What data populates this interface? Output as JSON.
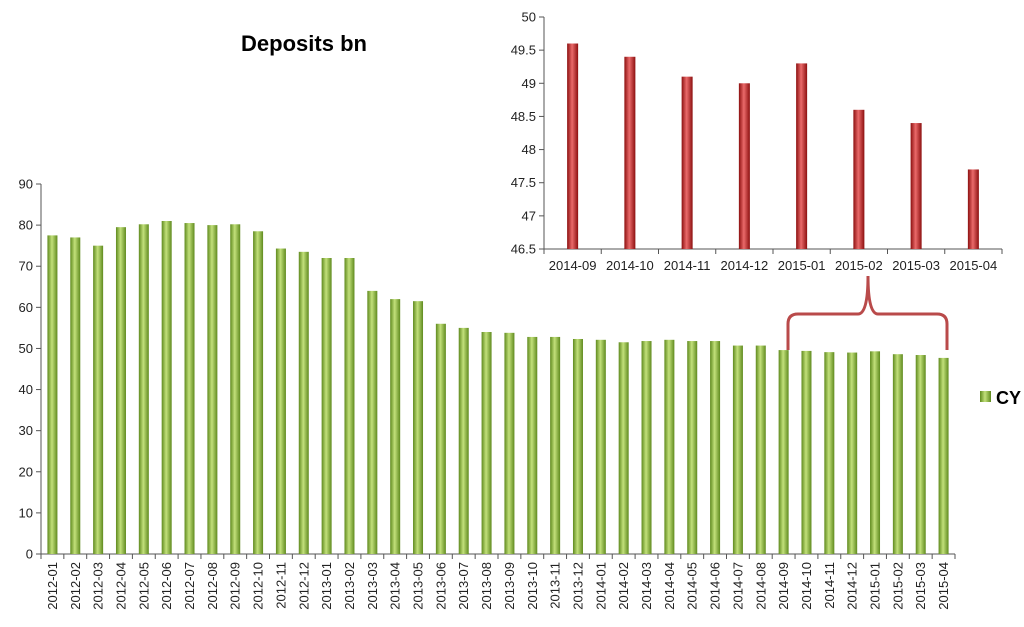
{
  "colors": {
    "main_bar": "#8fbc3a",
    "main_bar_dark": "#5f8a1e",
    "main_bar_light": "#c2e07a",
    "inset_bar": "#cc2222",
    "inset_bar_dark": "#8c0f0f",
    "inset_bar_light": "#ea6a6a",
    "bracket": "#b94a4a",
    "axis": "#555555"
  },
  "chart_data": [
    {
      "type": "bar",
      "title": "Deposits bn",
      "xlabel": "",
      "ylabel": "",
      "ylim": [
        0,
        90
      ],
      "yticks": [
        0,
        10,
        20,
        30,
        40,
        50,
        60,
        70,
        80,
        90
      ],
      "grid": false,
      "legend_position": "right",
      "categories": [
        "2012-01",
        "2012-02",
        "2012-03",
        "2012-04",
        "2012-05",
        "2012-06",
        "2012-07",
        "2012-08",
        "2012-09",
        "2012-10",
        "2012-11",
        "2012-12",
        "2013-01",
        "2013-02",
        "2013-03",
        "2013-04",
        "2013-05",
        "2013-06",
        "2013-07",
        "2013-08",
        "2013-09",
        "2013-10",
        "2013-11",
        "2013-12",
        "2014-01",
        "2014-02",
        "2014-03",
        "2014-04",
        "2014-05",
        "2014-06",
        "2014-07",
        "2014-08",
        "2014-09",
        "2014-10",
        "2014-11",
        "2014-12",
        "2015-01",
        "2015-02",
        "2015-03",
        "2015-04"
      ],
      "series": [
        {
          "name": "CY",
          "values": [
            77.5,
            77,
            75,
            79.5,
            80.2,
            81,
            80.5,
            80,
            80.2,
            78.5,
            74.3,
            73.5,
            72,
            72,
            64,
            62,
            61.5,
            56,
            55,
            54,
            53.8,
            52.8,
            52.8,
            52.3,
            52.1,
            51.5,
            51.8,
            52.1,
            51.8,
            51.8,
            50.7,
            50.7,
            49.6,
            49.4,
            49.1,
            49,
            49.3,
            48.6,
            48.4,
            47.7
          ]
        }
      ]
    },
    {
      "type": "bar",
      "title": "",
      "xlabel": "",
      "ylabel": "",
      "ylim": [
        46.5,
        50
      ],
      "yticks": [
        46.5,
        47,
        47.5,
        48,
        48.5,
        49,
        49.5,
        50
      ],
      "grid": false,
      "legend_position": "none",
      "categories": [
        "2014-09",
        "2014-10",
        "2014-11",
        "2014-12",
        "2015-01",
        "2015-02",
        "2015-03",
        "2015-04"
      ],
      "series": [
        {
          "values": [
            49.6,
            49.4,
            49.1,
            49,
            49.3,
            48.6,
            48.4,
            47.7
          ]
        }
      ]
    }
  ]
}
